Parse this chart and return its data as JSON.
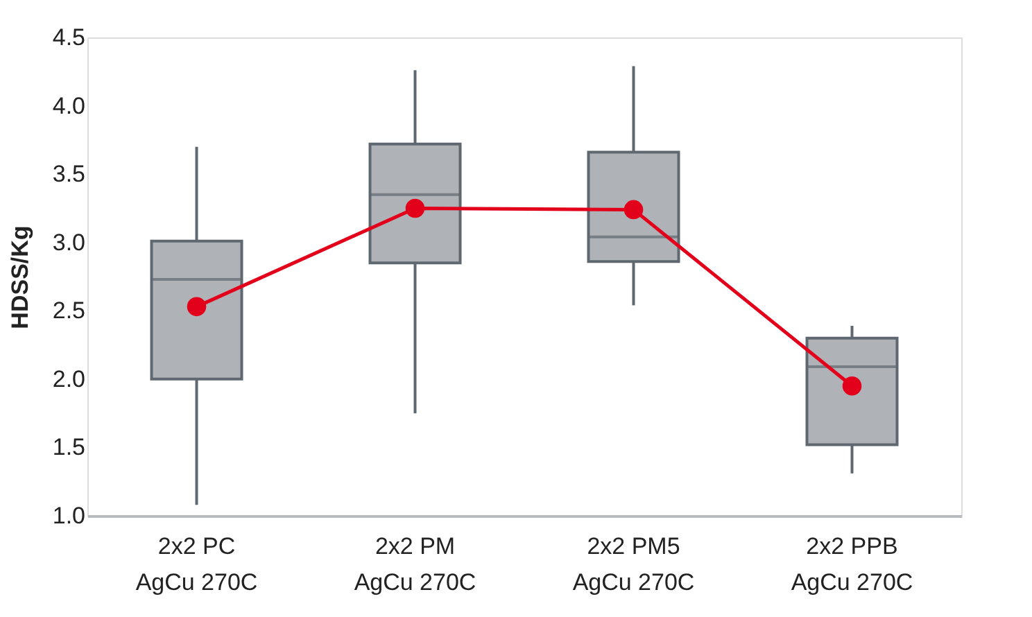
{
  "chart_data": {
    "type": "box",
    "ylabel": "HDSS/Kg",
    "categories": [
      "2x2 PC\nAgCu 270C",
      "2x2 PM\nAgCu 270C",
      "2x2 PM5\nAgCu 270C",
      "2x2 PPB\nAgCu 270C"
    ],
    "boxes": [
      {
        "low": 1.08,
        "q1": 2.0,
        "median": 2.73,
        "q3": 3.01,
        "high": 3.7
      },
      {
        "low": 1.75,
        "q1": 2.85,
        "median": 3.35,
        "q3": 3.72,
        "high": 4.26
      },
      {
        "low": 2.54,
        "q1": 2.86,
        "median": 3.04,
        "q3": 3.66,
        "high": 4.29
      },
      {
        "low": 1.31,
        "q1": 1.52,
        "median": 2.09,
        "q3": 2.3,
        "high": 2.39
      }
    ],
    "color": "#afb3b7",
    "series": [
      {
        "type": "line",
        "color": "#e2001a",
        "marker": "circle",
        "line_style": "solid",
        "values": [
          2.53,
          3.25,
          3.24,
          1.95
        ]
      }
    ],
    "ylim": [
      1.0,
      4.5
    ],
    "yticks": [
      {
        "value": 1,
        "label": "1.0"
      },
      1.5,
      {
        "value": 2,
        "label": "2.0"
      },
      2.5,
      {
        "value": 3,
        "label": "3.0"
      },
      3.5,
      {
        "value": 4,
        "label": "4.0"
      },
      4.5
    ],
    "grid": false
  }
}
